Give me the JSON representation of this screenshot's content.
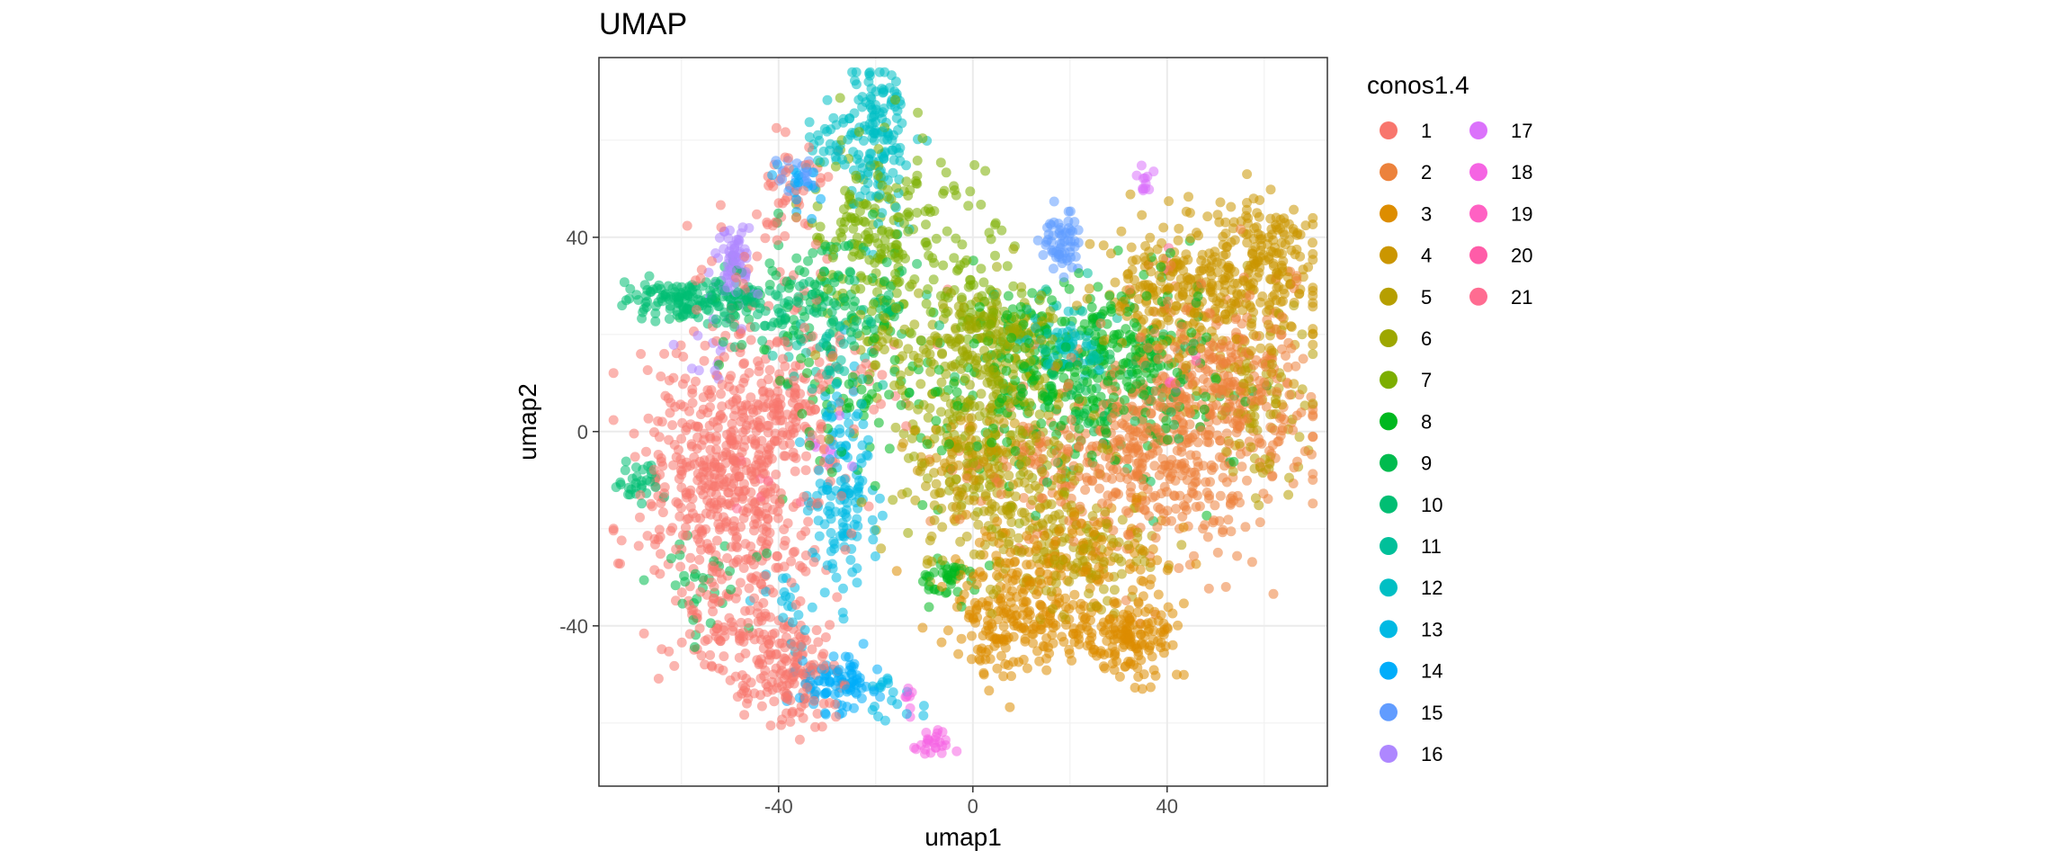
{
  "chart_data": {
    "type": "scatter",
    "title": "UMAP",
    "xlabel": "umap1",
    "ylabel": "umap2",
    "xlim": [
      -77,
      73
    ],
    "ylim": [
      -73,
      77
    ],
    "xticks": [
      -40,
      0,
      40
    ],
    "yticks": [
      -40,
      0,
      40
    ],
    "grid": true,
    "legend_title": "conos1.4",
    "legend_position": "right",
    "point_opacity": 0.55,
    "series": [
      {
        "name": "1",
        "color": "#F8766D",
        "clusters": [
          [
            -50,
            -10,
            9,
            15,
            560
          ],
          [
            -45,
            -44,
            8,
            6,
            140
          ],
          [
            -36,
            -52,
            5,
            5,
            70
          ],
          [
            -38,
            45,
            5,
            10,
            60
          ],
          [
            -42,
            5,
            8,
            8,
            90
          ],
          [
            -30,
            10,
            10,
            8,
            60
          ]
        ]
      },
      {
        "name": "2",
        "color": "#EC823C",
        "clusters": [
          [
            45,
            0,
            12,
            13,
            420
          ],
          [
            52,
            12,
            8,
            8,
            130
          ],
          [
            33,
            -5,
            10,
            8,
            110
          ],
          [
            18,
            -6,
            12,
            7,
            110
          ]
        ]
      },
      {
        "name": "3",
        "color": "#DD8D00",
        "clusters": [
          [
            10,
            -32,
            8,
            7,
            160
          ],
          [
            33,
            -43,
            5,
            4,
            110
          ],
          [
            5,
            -42,
            5,
            6,
            70
          ],
          [
            23,
            -42,
            8,
            4,
            90
          ],
          [
            28,
            -25,
            7,
            5,
            60
          ]
        ]
      },
      {
        "name": "4",
        "color": "#CB9600",
        "clusters": [
          [
            52,
            28,
            10,
            9,
            300
          ],
          [
            60,
            38,
            4,
            5,
            70
          ],
          [
            38,
            30,
            6,
            5,
            90
          ],
          [
            -2,
            -5,
            5,
            5,
            60
          ]
        ]
      },
      {
        "name": "5",
        "color": "#B69F00",
        "clusters": [
          [
            22,
            -25,
            8,
            7,
            140
          ],
          [
            60,
            5,
            5,
            10,
            80
          ],
          [
            2,
            -15,
            8,
            6,
            100
          ],
          [
            10,
            -8,
            8,
            6,
            70
          ]
        ]
      },
      {
        "name": "6",
        "color": "#9DA700",
        "clusters": [
          [
            5,
            18,
            6,
            6,
            170
          ],
          [
            0,
            0,
            10,
            8,
            150
          ],
          [
            -10,
            18,
            8,
            6,
            80
          ]
        ]
      },
      {
        "name": "7",
        "color": "#7CAE00",
        "clusters": [
          [
            -15,
            40,
            8,
            12,
            150
          ],
          [
            -24,
            45,
            6,
            8,
            60
          ],
          [
            0,
            28,
            6,
            6,
            60
          ]
        ]
      },
      {
        "name": "8",
        "color": "#00B81F",
        "clusters": [
          [
            30,
            15,
            12,
            10,
            260
          ],
          [
            10,
            10,
            8,
            8,
            100
          ],
          [
            -5,
            -30,
            3,
            2,
            40
          ],
          [
            -22,
            5,
            10,
            10,
            70
          ]
        ]
      },
      {
        "name": "9",
        "color": "#00BB4E",
        "clusters": [
          [
            -30,
            28,
            10,
            7,
            110
          ],
          [
            25,
            5,
            12,
            8,
            80
          ],
          [
            -55,
            -30,
            6,
            6,
            30
          ]
        ]
      },
      {
        "name": "10",
        "color": "#00BE73",
        "clusters": [
          [
            -58,
            27,
            7,
            2,
            140
          ],
          [
            -35,
            25,
            10,
            4,
            90
          ],
          [
            -68,
            -10,
            3,
            2,
            30
          ]
        ]
      },
      {
        "name": "11",
        "color": "#00C09A",
        "clusters": [
          [
            -30,
            15,
            6,
            5,
            40
          ],
          [
            20,
            20,
            6,
            6,
            40
          ]
        ]
      },
      {
        "name": "12",
        "color": "#00BFC4",
        "clusters": [
          [
            -19,
            61,
            3,
            8,
            130
          ],
          [
            -27,
            60,
            4,
            5,
            40
          ],
          [
            20,
            17,
            4,
            3,
            50
          ]
        ]
      },
      {
        "name": "13",
        "color": "#00B9E3",
        "clusters": [
          [
            -27,
            -12,
            3,
            10,
            140
          ],
          [
            -38,
            -35,
            3,
            4,
            20
          ],
          [
            -16,
            -55,
            3,
            3,
            20
          ]
        ]
      },
      {
        "name": "14",
        "color": "#00ADFA",
        "clusters": [
          [
            -29,
            -52,
            4,
            3,
            90
          ],
          [
            -35,
            50,
            3,
            3,
            20
          ]
        ]
      },
      {
        "name": "15",
        "color": "#619CFF",
        "clusters": [
          [
            18,
            39,
            2,
            3,
            60
          ],
          [
            -36,
            53,
            3,
            2,
            20
          ]
        ]
      },
      {
        "name": "16",
        "color": "#AE87FF",
        "clusters": [
          [
            -49,
            35,
            2,
            4,
            70
          ],
          [
            -54,
            20,
            3,
            4,
            15
          ]
        ]
      },
      {
        "name": "17",
        "color": "#DB72FB",
        "clusters": [
          [
            35,
            52,
            1,
            2,
            12
          ],
          [
            -30,
            -3,
            3,
            3,
            8
          ]
        ]
      },
      {
        "name": "18",
        "color": "#F564E3",
        "clusters": [
          [
            -8,
            -64,
            2,
            2,
            25
          ],
          [
            -13,
            -55,
            1,
            2,
            8
          ]
        ]
      },
      {
        "name": "19",
        "color": "#FF61C3",
        "clusters": [
          [
            42,
            10,
            1,
            1,
            4
          ]
        ]
      },
      {
        "name": "20",
        "color": "#FF5CA8",
        "clusters": [
          [
            45,
            14,
            1,
            1,
            2
          ]
        ]
      },
      {
        "name": "21",
        "color": "#FF6C91",
        "clusters": [
          [
            40,
            35,
            2,
            2,
            4
          ],
          [
            -45,
            -10,
            5,
            5,
            6
          ]
        ]
      }
    ]
  }
}
